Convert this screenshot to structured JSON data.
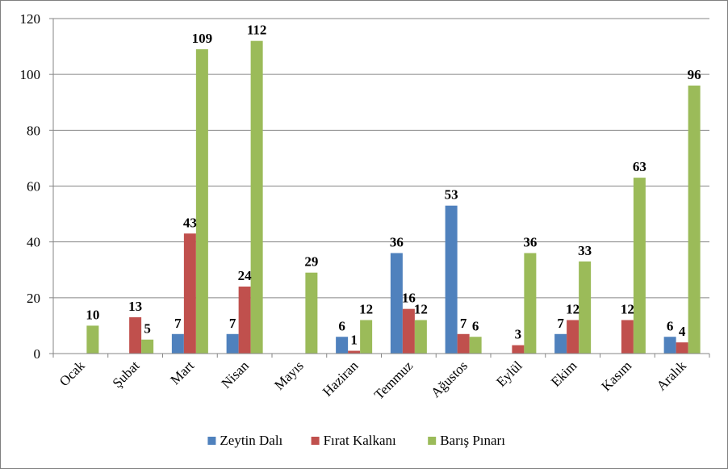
{
  "chart_data": {
    "type": "bar",
    "title": "",
    "xlabel": "",
    "ylabel": "",
    "ylim": [
      0,
      120
    ],
    "yticks": [
      0,
      20,
      40,
      60,
      80,
      100,
      120
    ],
    "grid": true,
    "legend_position": "bottom",
    "categories": [
      "Ocak",
      "Şubat",
      "Mart",
      "Nisan",
      "Mayıs",
      "Haziran",
      "Temmuz",
      "Ağustos",
      "Eylül",
      "Ekim",
      "Kasım",
      "Aralık"
    ],
    "series": [
      {
        "name": "Zeytin Dalı",
        "color": "#4f81bd",
        "values": [
          null,
          null,
          7,
          7,
          null,
          6,
          36,
          53,
          null,
          7,
          null,
          6
        ]
      },
      {
        "name": "Fırat Kalkanı",
        "color": "#c0504d",
        "values": [
          null,
          13,
          43,
          24,
          null,
          1,
          16,
          7,
          3,
          12,
          12,
          4
        ]
      },
      {
        "name": "Barış Pınarı",
        "color": "#9bbb59",
        "values": [
          10,
          5,
          109,
          112,
          29,
          12,
          12,
          6,
          36,
          33,
          63,
          96
        ]
      }
    ]
  }
}
